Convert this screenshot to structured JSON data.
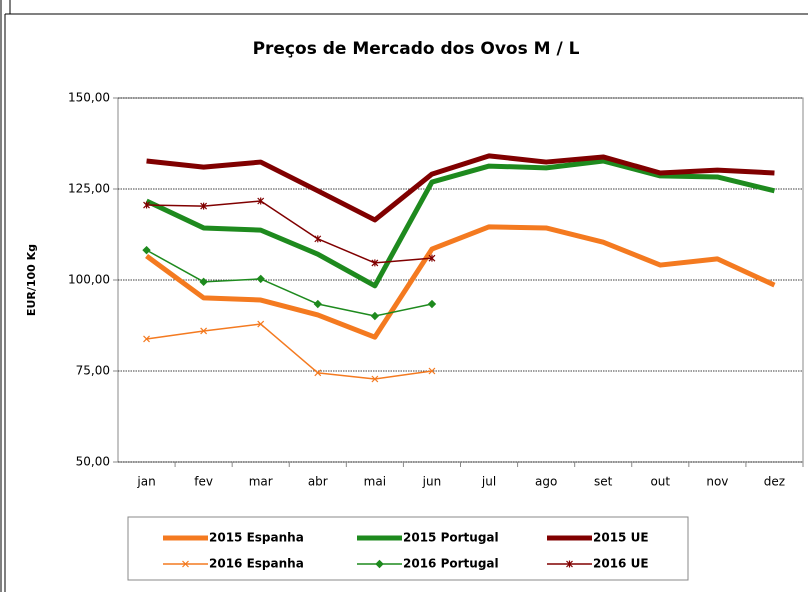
{
  "chart_data": {
    "type": "line",
    "title": "Preços de Mercado dos Ovos M / L",
    "y_label": "EUR/100 Kg",
    "categories": [
      "jan",
      "fev",
      "mar",
      "abr",
      "mai",
      "jun",
      "jul",
      "ago",
      "set",
      "out",
      "nov",
      "dez"
    ],
    "ylim": [
      50,
      150
    ],
    "yticks": [
      {
        "value": 50,
        "label": "50,00"
      },
      {
        "value": 75,
        "label": "75,00"
      },
      {
        "value": 100,
        "label": "100,00"
      },
      {
        "value": 125,
        "label": "125,00"
      },
      {
        "value": 150,
        "label": "150,00"
      }
    ],
    "grid": true,
    "legend": "bottom",
    "series": [
      {
        "name": "2015 Espanha",
        "color": "#f47a20",
        "width": 5,
        "marker": "none",
        "values": [
          106.6,
          95.1,
          94.5,
          90.4,
          84.3,
          108.5,
          114.6,
          114.3,
          110.4,
          104.1,
          105.8,
          98.6
        ]
      },
      {
        "name": "2015 Portugal",
        "color": "#1e8a1e",
        "width": 5,
        "marker": "none",
        "values": [
          121.7,
          114.3,
          113.7,
          107.1,
          98.4,
          126.9,
          131.3,
          130.8,
          132.7,
          128.6,
          128.3,
          124.5
        ]
      },
      {
        "name": "2015 UE",
        "color": "#800000",
        "width": 5,
        "marker": "none",
        "values": [
          132.7,
          131.0,
          132.4,
          124.5,
          116.5,
          129.1,
          134.1,
          132.4,
          133.8,
          129.4,
          130.2,
          129.4
        ]
      },
      {
        "name": "2016 Espanha",
        "color": "#f47a20",
        "width": 1.5,
        "marker": "x",
        "values": [
          83.8,
          86.0,
          87.9,
          74.5,
          72.8,
          75.0,
          null,
          null,
          null,
          null,
          null,
          null
        ]
      },
      {
        "name": "2016 Portugal",
        "color": "#1e8a1e",
        "width": 1.5,
        "marker": "diamond",
        "values": [
          108.2,
          99.5,
          100.3,
          93.4,
          90.1,
          93.4,
          null,
          null,
          null,
          null,
          null,
          null
        ]
      },
      {
        "name": "2016 UE",
        "color": "#800000",
        "width": 1.5,
        "marker": "asterisk",
        "values": [
          120.6,
          120.3,
          121.7,
          111.3,
          104.7,
          106.0,
          null,
          null,
          null,
          null,
          null,
          null
        ]
      }
    ]
  }
}
